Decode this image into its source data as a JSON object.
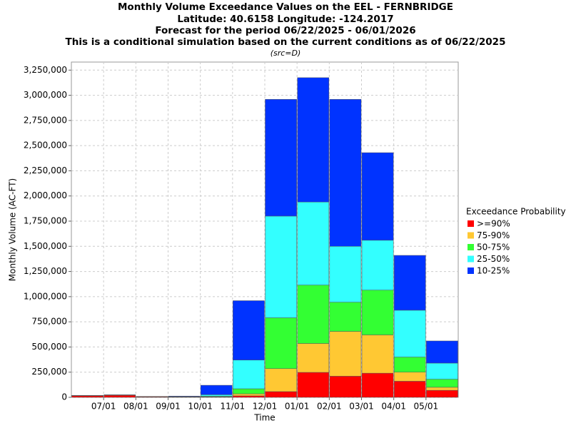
{
  "chart_data": {
    "type": "stacked_bar",
    "title": "Monthly Volume Exceedance Values on the EEL - FERNBRIDGE",
    "title_lines": [
      "Latitude: 40.6158 Longitude: -124.2017",
      "Forecast for the period 06/22/2025 - 06/01/2026",
      "This is a conditional simulation based on the current conditions as of 06/22/2025"
    ],
    "subtitle": "(src=D)",
    "x_label": "Time",
    "y_label": "Monthly Volume (AC-FT)",
    "legend_title": "Exceedance Probability",
    "categories": [
      null,
      "07/01",
      "08/01",
      "09/01",
      "10/01",
      "11/01",
      "12/01",
      "01/01",
      "02/01",
      "03/01",
      "04/01",
      "05/01"
    ],
    "series": [
      {
        "name": ">=90%",
        "color": "#ff0000",
        "values": [
          15000,
          20000,
          5000,
          3000,
          3000,
          15000,
          57000,
          248000,
          210000,
          240000,
          160000,
          70000
        ]
      },
      {
        "name": "75-90%",
        "color": "#ffc833",
        "values": [
          1000,
          2000,
          1000,
          1000,
          3000,
          20000,
          228000,
          287000,
          445000,
          380000,
          90000,
          30000
        ]
      },
      {
        "name": "50-75%",
        "color": "#33ff33",
        "values": [
          1000,
          1000,
          1000,
          1000,
          5000,
          50000,
          505000,
          580000,
          290000,
          445000,
          150000,
          80000
        ]
      },
      {
        "name": "25-50%",
        "color": "#33ffff",
        "values": [
          1000,
          1000,
          1000,
          2000,
          15000,
          285000,
          1010000,
          825000,
          555000,
          495000,
          465000,
          160000
        ]
      },
      {
        "name": "10-25%",
        "color": "#0033ff",
        "values": [
          1000,
          1000,
          1000,
          5000,
          94000,
          590000,
          1160000,
          1235000,
          1460000,
          870000,
          545000,
          220000
        ]
      }
    ],
    "ylim": [
      0,
      3330000
    ],
    "yticks": [
      0,
      {
        "value": 250000,
        "label": "250,000"
      },
      {
        "value": 500000,
        "label": "500,000"
      },
      {
        "value": 750000,
        "label": "750,000"
      },
      {
        "value": 1000000,
        "label": "1,000,000"
      },
      {
        "value": 1250000,
        "label": "1,250,000"
      },
      {
        "value": 1500000,
        "label": "1,500,000"
      },
      {
        "value": 1750000,
        "label": "1,750,000"
      },
      {
        "value": 2000000,
        "label": "2,000,000"
      },
      {
        "value": 2250000,
        "label": "2,250,000"
      },
      {
        "value": 2500000,
        "label": "2,500,000"
      },
      {
        "value": 2750000,
        "label": "2,750,000"
      },
      {
        "value": 3000000,
        "label": "3,000,000"
      },
      {
        "value": 3250000,
        "label": "3,250,000"
      }
    ],
    "grid": true
  }
}
